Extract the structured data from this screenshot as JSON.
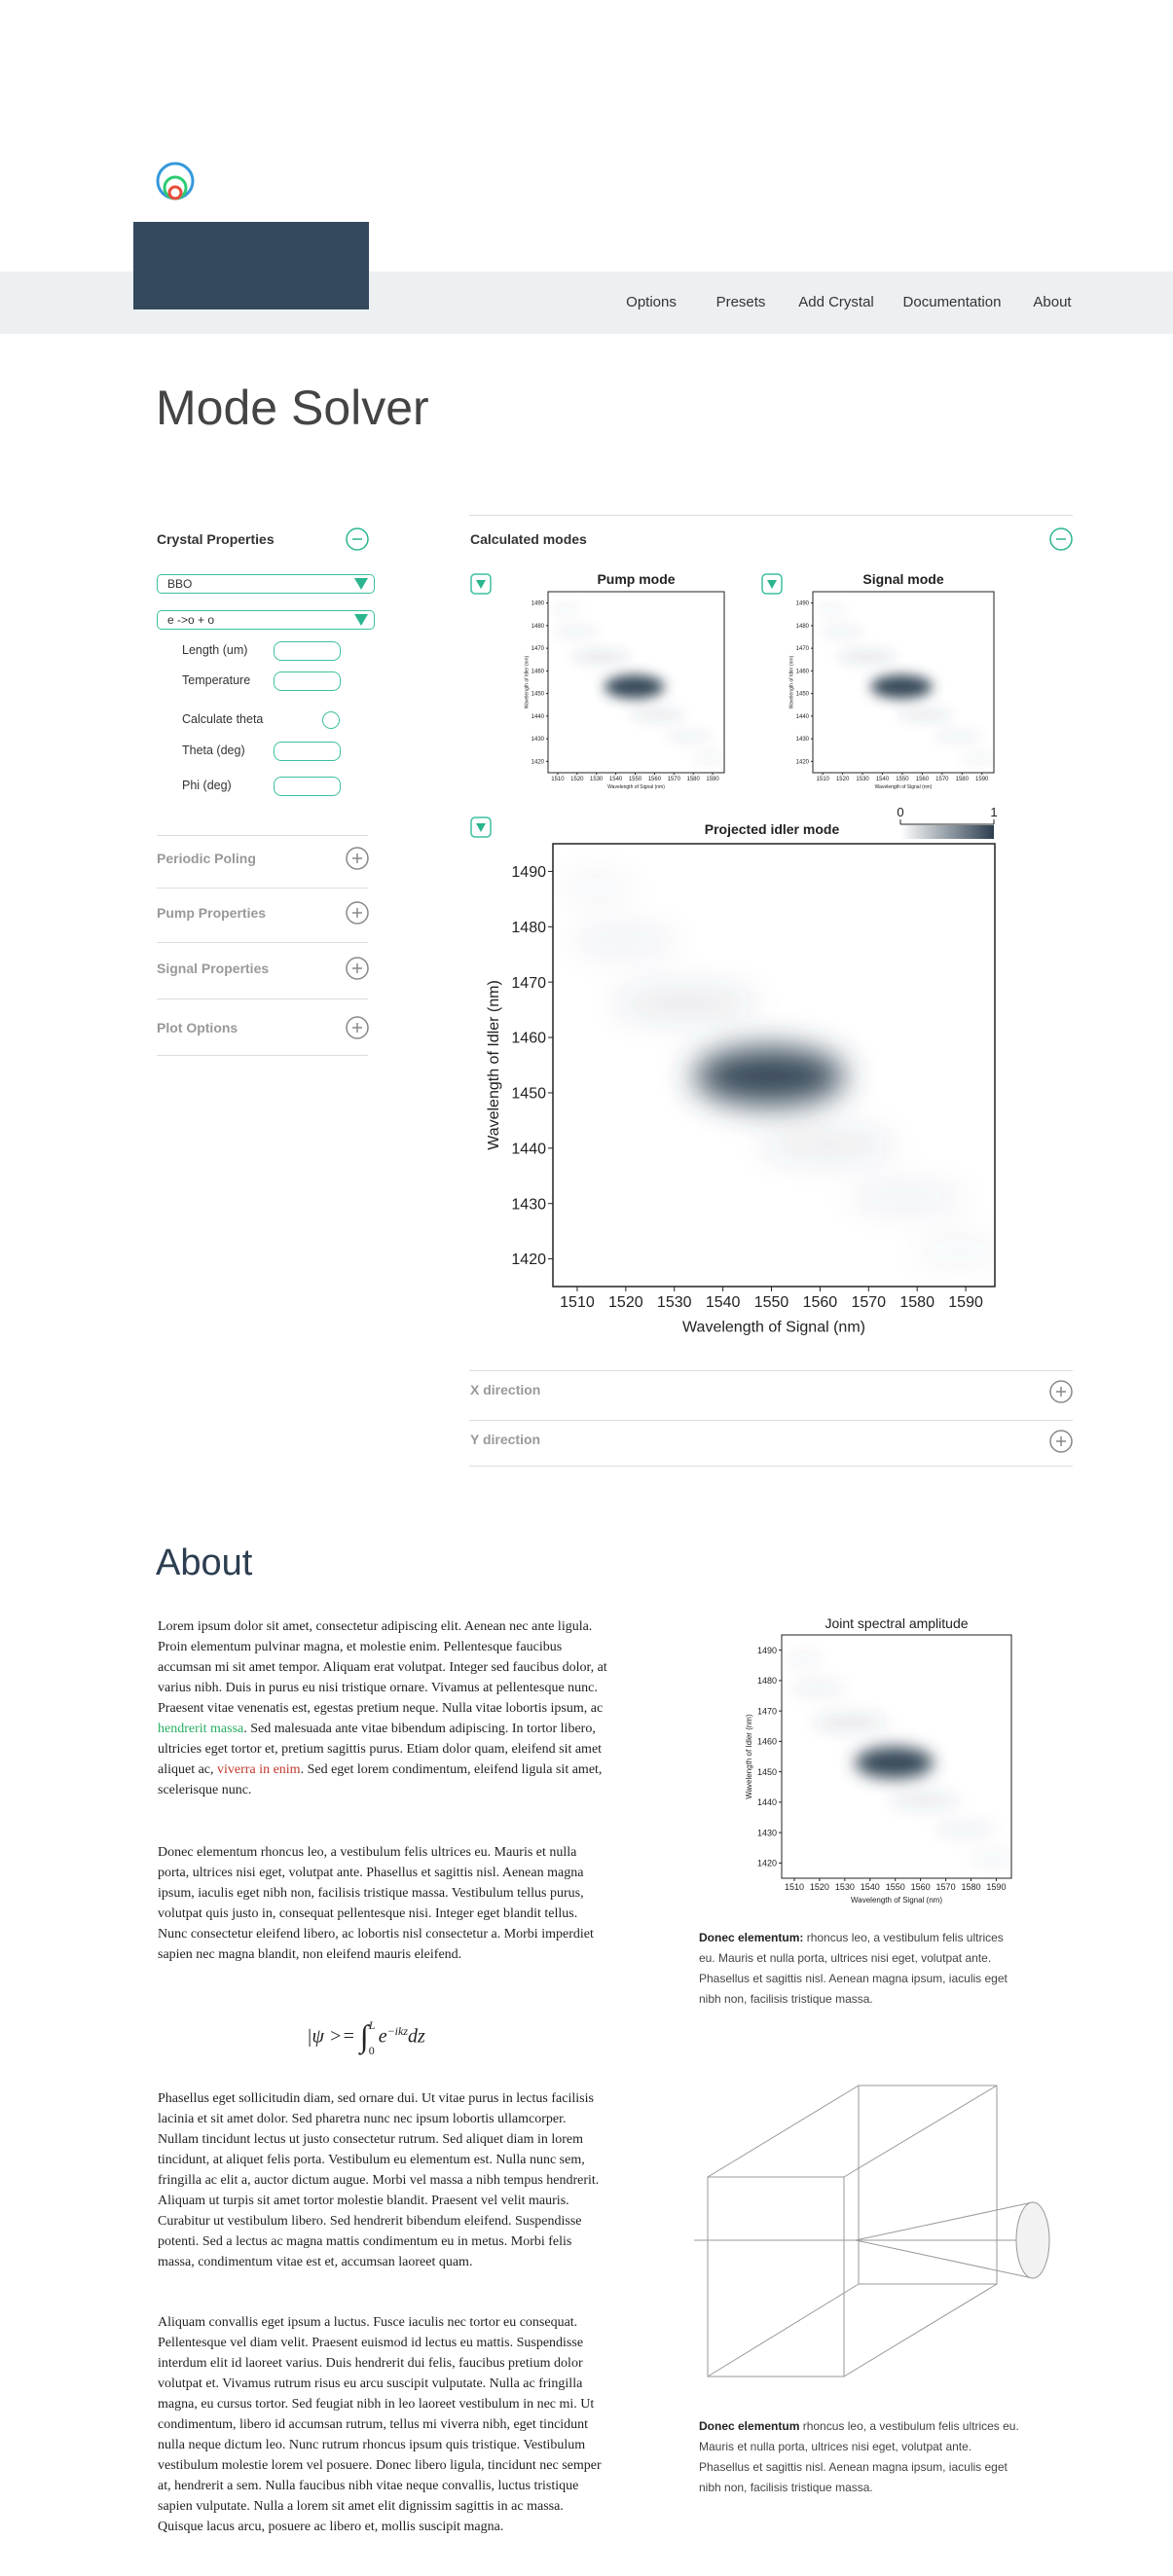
{
  "nav": {
    "items": [
      "Options",
      "Presets",
      "Add Crystal",
      "Documentation",
      "About"
    ]
  },
  "title": "Mode Solver",
  "sidebar": {
    "heading": "Crystal Properties",
    "crystal": "BBO",
    "interaction": "e ->o + o",
    "fields": [
      "Length (um)",
      "Temperature",
      "Calculate theta",
      "Theta (deg)",
      "Phi (deg)"
    ],
    "sections": [
      "Periodic Poling",
      "Pump Properties",
      "Signal Properties",
      "Plot Options"
    ]
  },
  "modes": {
    "heading": "Calculated modes",
    "pump_title": "Pump mode",
    "signal_title": "Signal mode",
    "projected_title": "Projected idler mode",
    "colorbar_ticks": [
      0,
      1
    ],
    "x_label": "Wavelength of Signal (nm)",
    "y_label": "Wavelength of Idler (nm)",
    "xlim": [
      1505,
      1596
    ],
    "ylim": [
      1415,
      1495
    ],
    "xticks": [
      1510,
      1520,
      1530,
      1540,
      1550,
      1560,
      1570,
      1580,
      1590
    ],
    "yticks": [
      1420,
      1430,
      1440,
      1450,
      1460,
      1470,
      1480,
      1490
    ],
    "sections": [
      "X direction",
      "Y direction"
    ]
  },
  "about": {
    "heading": "About",
    "intro": {
      "t1": "Lorem ipsum dolor sit amet, consectetur adipiscing elit. Aenean nec ante ligula. Proin elementum pulvinar magna, et molestie enim. Pellentesque faucibus accumsan mi sit amet tempor. Aliquam erat volutpat. Integer sed faucibus dolor, at varius nibh. Duis in purus eu nisi tristique ornare. Vivamus at pellentesque nunc. Praesent vitae venenatis est, egestas pretium neque. Nulla vitae lobortis ipsum, ac",
      "link1": "hendrerit massa",
      "t2": ". Sed malesuada ante vitae bibendum adipiscing. In tortor libero, ultricies eget tortor et, pretium sagittis purus. Etiam dolor quam, eleifend sit amet aliquet ac,",
      "link2": "viverra in enim",
      "t3": ". Sed eget lorem condimentum, eleifend ligula sit amet, scelerisque nunc."
    },
    "paragraph2": "Donec elementum rhoncus leo, a vestibulum felis ultrices eu. Mauris et nulla porta, ultrices nisi eget, volutpat ante. Phasellus et sagittis nisl. Aenean magna ipsum, iaculis eget nibh non, facilisis tristique massa. Vestibulum tellus purus, volutpat quis justo in, consequat pellentesque nisi. Integer eget blandit tellus. Nunc consectetur eleifend libero, ac lobortis nisl consectetur a. Morbi imperdiet sapien nec magna blandit, non eleifend mauris eleifend.",
    "equation": {
      "lhs": "|ψ >=",
      "integral": "∫",
      "upper": "L",
      "lower": "0",
      "base": "e",
      "exponent": "−ikz",
      "differential": "dz"
    },
    "paragraph3": "Phasellus eget sollicitudin diam, sed ornare dui. Ut vitae purus in lectus facilisis lacinia et sit amet dolor. Sed pharetra nunc nec ipsum lobortis ullamcorper. Nullam tincidunt lectus ut justo consectetur rutrum. Sed aliquet diam in lorem tincidunt, at aliquet felis porta. Vestibulum eu elementum est. Nulla nunc sem, fringilla ac elit a, auctor dictum augue. Morbi vel massa a nibh tempus hendrerit. Aliquam ut turpis sit amet tortor molestie blandit. Praesent vel velit mauris. Curabitur ut vestibulum libero. Sed hendrerit bibendum eleifend. Suspendisse potenti. Sed a lectus ac magna mattis condimentum eu in metus. Morbi felis massa, condimentum vitae est et, accumsan laoreet quam.",
    "paragraph4": "Aliquam convallis eget ipsum a luctus. Fusce iaculis nec tortor eu consequat. Pellentesque vel diam velit. Praesent euismod id lectus eu mattis. Suspendisse interdum elit id laoreet varius. Duis hendrerit dui felis, faucibus pretium dolor volutpat et. Vivamus rutrum risus eu arcu suscipit vulputate. Nulla ac fringilla magna, eu cursus tortor. Sed feugiat nibh in leo laoreet vestibulum in nec mi. Ut condimentum, libero id accumsan rutrum, tellus mi viverra nibh, eget tincidunt nulla neque dictum leo. Nunc rutrum rhoncus ipsum quis tristique. Vestibulum vestibulum molestie lorem vel posuere. Donec libero ligula, tincidunt nec semper at, hendrerit a sem. Nulla faucibus nibh vitae neque convallis, luctus tristique sapien vulputate. Nulla a lorem sit amet elit dignissim sagittis in ac massa. Quisque lacus arcu, posuere ac libero et, mollis suscipit magna.",
    "figure": {
      "title": "Joint spectral amplitude",
      "caption_bold": "Donec elementum:",
      "caption": "rhoncus leo, a vestibulum felis ultrices eu. Mauris et nulla porta, ultrices nisi eget, volutpat ante. Phasellus et sagittis nisl. Aenean magna ipsum, iaculis eget nibh non, facilisis tristique massa."
    },
    "diagram": {
      "caption_bold": "Donec elementum",
      "caption": "rhoncus leo, a vestibulum felis ultrices eu. Mauris et nulla porta, ultrices nisi eget, volutpat ante. Phasellus et sagittis nisl. Aenean magna ipsum, iaculis eget nibh non, facilisis tristique massa."
    }
  }
}
